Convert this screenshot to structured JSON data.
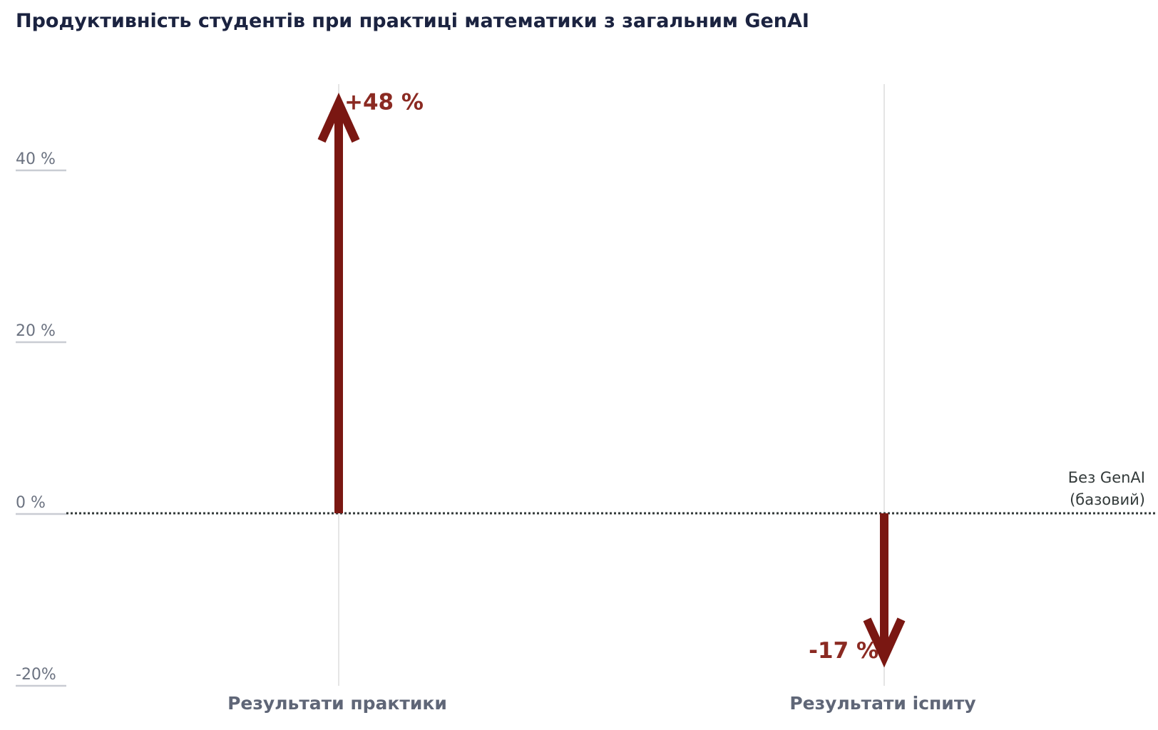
{
  "chart_data": {
    "type": "bar",
    "title": "Продуктивність студентів при практиці математики з загальним GenAI",
    "categories": [
      "Результати практики",
      "Результати іспиту"
    ],
    "series": [
      {
        "values": [
          48,
          -17
        ],
        "value_labels": [
          "+48 %",
          "-17 %"
        ]
      }
    ],
    "ylim": [
      -20,
      48
    ],
    "yticks": [
      -20,
      0,
      20,
      40
    ],
    "ytick_labels": [
      "-20%",
      "0 %",
      "20 %",
      "40 %"
    ],
    "baseline": {
      "value": 0,
      "label_line1": "Без GenAI",
      "label_line2": "(базовий)",
      "style": "dotted"
    },
    "colors": {
      "arrow": "#7a1712",
      "value_label": "#8b2a22",
      "title": "#1b2340",
      "grid": "#e5e5e5",
      "baseline": "#333a3a"
    },
    "grid": "vertical-at-categories",
    "xlabel": "",
    "ylabel": ""
  }
}
